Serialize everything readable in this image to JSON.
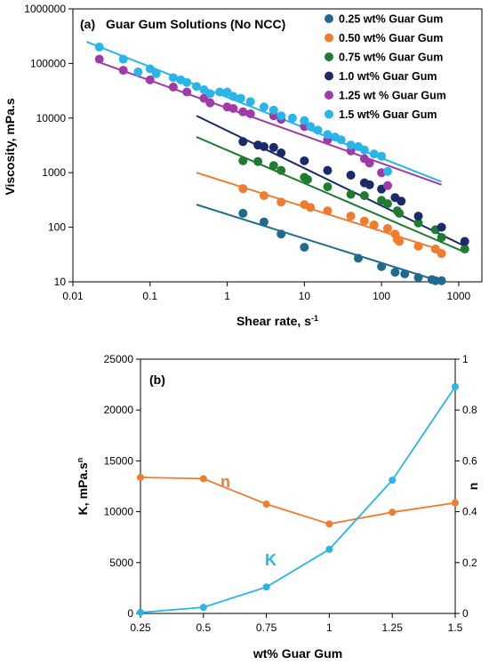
{
  "chart_data": [
    {
      "type": "scatter",
      "panel": "(a)",
      "title": "Guar Gum Solutions (No NCC)",
      "xlabel": "Shear rate, s",
      "xlabel_sup": "-1",
      "ylabel": "Viscosity, mPa.s",
      "xscale": "log",
      "yscale": "log",
      "xlim": [
        0.01,
        2000
      ],
      "ylim": [
        10,
        1000000
      ],
      "x_tick_labels": [
        "0.01",
        "0.1",
        "1",
        "10",
        "100",
        "1000"
      ],
      "y_tick_labels": [
        "10",
        "100",
        "1000",
        "10000",
        "100000",
        "1000000"
      ],
      "legend_placement": "top-right",
      "grid": false,
      "series": [
        {
          "name": "0.25 wt% Guar Gum",
          "color": "#1f6b8e",
          "points": [
            [
              1.6,
              180
            ],
            [
              3,
              125
            ],
            [
              5,
              75
            ],
            [
              10,
              43
            ],
            [
              50,
              27
            ],
            [
              100,
              19
            ],
            [
              150,
              15
            ],
            [
              200,
              14
            ],
            [
              300,
              12
            ],
            [
              450,
              11
            ],
            [
              500,
              10.5
            ],
            [
              600,
              10.5
            ]
          ],
          "fit": [
            [
              0.4,
              260
            ],
            [
              600,
              10
            ]
          ]
        },
        {
          "name": "0.50 wt% Guar Gum",
          "color": "#f07c30",
          "points": [
            [
              1.6,
              510
            ],
            [
              3,
              380
            ],
            [
              5,
              290
            ],
            [
              10,
              260
            ],
            [
              12,
              230
            ],
            [
              20,
              200
            ],
            [
              40,
              160
            ],
            [
              60,
              130
            ],
            [
              80,
              110
            ],
            [
              120,
              95
            ],
            [
              150,
              75
            ],
            [
              160,
              60
            ],
            [
              170,
              55
            ],
            [
              300,
              45
            ],
            [
              500,
              40
            ],
            [
              600,
              33
            ]
          ],
          "fit": [
            [
              0.4,
              1000
            ],
            [
              600,
              38
            ]
          ]
        },
        {
          "name": "0.75 wt% Guar Gum",
          "color": "#1e7b30",
          "points": [
            [
              1.6,
              1650
            ],
            [
              2.5,
              1600
            ],
            [
              4,
              1350
            ],
            [
              5,
              1100
            ],
            [
              10,
              820
            ],
            [
              11,
              750
            ],
            [
              20,
              550
            ],
            [
              40,
              400
            ],
            [
              60,
              380
            ],
            [
              100,
              310
            ],
            [
              120,
              270
            ],
            [
              160,
              200
            ],
            [
              170,
              180
            ],
            [
              300,
              120
            ],
            [
              500,
              90
            ],
            [
              600,
              65
            ],
            [
              1200,
              40
            ]
          ],
          "fit": [
            [
              0.4,
              4500
            ],
            [
              1200,
              35
            ]
          ]
        },
        {
          "name": "1.0 wt% Guar Gum",
          "color": "#1b2a6b",
          "points": [
            [
              1.6,
              3700
            ],
            [
              2.5,
              3200
            ],
            [
              3,
              3000
            ],
            [
              4,
              2900
            ],
            [
              5,
              2300
            ],
            [
              10,
              1650
            ],
            [
              20,
              1100
            ],
            [
              40,
              900
            ],
            [
              60,
              650
            ],
            [
              70,
              600
            ],
            [
              100,
              500
            ],
            [
              150,
              350
            ],
            [
              180,
              300
            ],
            [
              300,
              160
            ],
            [
              600,
              100
            ],
            [
              1200,
              55
            ]
          ],
          "fit": [
            [
              0.4,
              11000
            ],
            [
              1200,
              45
            ]
          ]
        },
        {
          "name": "1.25 wt % Guar Gum",
          "color": "#a03aa8",
          "points": [
            [
              0.022,
              120000
            ],
            [
              0.045,
              75000
            ],
            [
              0.1,
              50000
            ],
            [
              0.2,
              37000
            ],
            [
              0.3,
              30000
            ],
            [
              0.5,
              23000
            ],
            [
              0.6,
              19000
            ],
            [
              1,
              16000
            ],
            [
              1.2,
              15000
            ],
            [
              1.6,
              13000
            ],
            [
              2,
              12000
            ],
            [
              4,
              11000
            ],
            [
              5,
              9500
            ],
            [
              10,
              7000
            ],
            [
              20,
              4000
            ],
            [
              40,
              2500
            ],
            [
              60,
              1800
            ],
            [
              70,
              1500
            ],
            [
              100,
              1000
            ],
            [
              120,
              580
            ]
          ],
          "fit": [
            [
              0.022,
              105000
            ],
            [
              600,
              600
            ]
          ]
        },
        {
          "name": "1.5 wt% Guar Gum",
          "color": "#29b5e8",
          "points": [
            [
              0.022,
              200000
            ],
            [
              0.045,
              120000
            ],
            [
              0.07,
              70000
            ],
            [
              0.1,
              80000
            ],
            [
              0.12,
              65000
            ],
            [
              0.2,
              55000
            ],
            [
              0.25,
              50000
            ],
            [
              0.3,
              45000
            ],
            [
              0.4,
              38000
            ],
            [
              0.5,
              33000
            ],
            [
              0.6,
              28000
            ],
            [
              0.8,
              30000
            ],
            [
              1,
              30000
            ],
            [
              1.2,
              25000
            ],
            [
              1.5,
              23000
            ],
            [
              2,
              20000
            ],
            [
              3,
              16000
            ],
            [
              4,
              14000
            ],
            [
              5,
              11000
            ],
            [
              7,
              10000
            ],
            [
              10,
              9000
            ],
            [
              12,
              7000
            ],
            [
              15,
              6000
            ],
            [
              20,
              5000
            ],
            [
              25,
              4500
            ],
            [
              30,
              4000
            ],
            [
              40,
              3200
            ],
            [
              50,
              3000
            ],
            [
              60,
              2600
            ],
            [
              80,
              2200
            ],
            [
              100,
              2000
            ],
            [
              120,
              1050
            ]
          ],
          "fit": [
            [
              0.015,
              250000
            ],
            [
              600,
              680
            ]
          ]
        }
      ]
    },
    {
      "type": "line",
      "panel": "(b)",
      "xlabel": "wt% Guar Gum",
      "ylabel": "K, mPa.s",
      "ylabel_sup": "n",
      "y2label": "n",
      "x": [
        0.25,
        0.5,
        0.75,
        1,
        1.25,
        1.5
      ],
      "x_tick_labels": [
        "0.25",
        "0.5",
        "0.75",
        "1",
        "1.25",
        "1.5"
      ],
      "ylim": [
        0,
        25000
      ],
      "y2lim": [
        0,
        1
      ],
      "y_tick_labels": [
        "0",
        "5000",
        "10000",
        "15000",
        "20000",
        "25000"
      ],
      "y2_tick_labels": [
        "0",
        "0.2",
        "0.4",
        "0.6",
        "0.8",
        "1"
      ],
      "grid": false,
      "series": [
        {
          "name": "n",
          "axis": "right",
          "color": "#f07c30",
          "values": [
            0.535,
            0.53,
            0.43,
            0.352,
            0.398,
            0.435
          ]
        },
        {
          "name": "K",
          "axis": "left",
          "color": "#29b5e8",
          "values": [
            100,
            600,
            2600,
            6300,
            13100,
            22300
          ]
        }
      ],
      "annotations": [
        "n",
        "K"
      ]
    }
  ]
}
